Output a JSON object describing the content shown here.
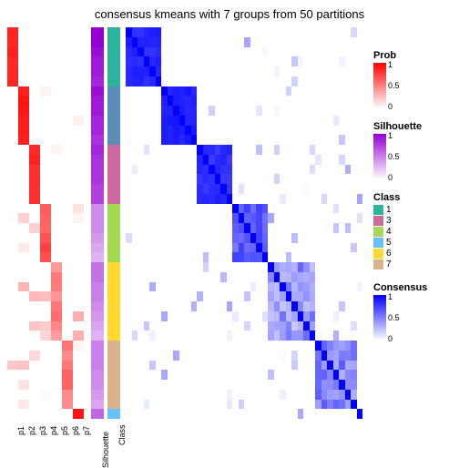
{
  "title": "consensus kmeans with 7 groups from 50 partitions",
  "n_samples": 40,
  "prob_columns": [
    "p1",
    "p2",
    "p3",
    "p4",
    "p5",
    "p6",
    "p7"
  ],
  "annotation_labels": [
    "Silhouette",
    "Class"
  ],
  "class_colors": {
    "1": "#2bb39b",
    "2": "#5a8eb8",
    "3": "#cc6aa0",
    "4": "#a6d854",
    "5": "#66c2ff",
    "6": "#ffd92f",
    "7": "#d9b38c"
  },
  "prob_gradient": {
    "low": "#ffffff",
    "high": "#ff0000"
  },
  "sil_gradient": {
    "low": "#ffffff",
    "high": "#9400d3"
  },
  "cons_gradient": {
    "low": "#ffffff",
    "high": "#0000ff"
  },
  "legends": {
    "prob": {
      "title": "Prob",
      "stops": [
        "1",
        "0.5",
        "0"
      ],
      "low": "#ffffff",
      "high": "#ff0000"
    },
    "sil": {
      "title": "Silhouette",
      "stops": [
        "1",
        "0.5",
        "0"
      ],
      "low": "#ffffff",
      "high": "#9400d3"
    },
    "class": {
      "title": "Class",
      "items": [
        {
          "label": "1",
          "color": "#2bb39b"
        },
        {
          "label": "3",
          "color": "#cc6aa0"
        },
        {
          "label": "4",
          "color": "#a6d854"
        },
        {
          "label": "5",
          "color": "#66c2ff"
        },
        {
          "label": "6",
          "color": "#ffd92f"
        },
        {
          "label": "7",
          "color": "#d9b38c"
        }
      ]
    },
    "cons": {
      "title": "Consensus",
      "stops": [
        "1",
        "0.5",
        "0"
      ],
      "low": "#ffffff",
      "high": "#0000ff"
    }
  },
  "groups": [
    {
      "class": 1,
      "size": 6,
      "scatter": 0.1
    },
    {
      "class": 2,
      "size": 6,
      "scatter": 0.08
    },
    {
      "class": 3,
      "size": 6,
      "scatter": 0.12
    },
    {
      "class": 4,
      "size": 6,
      "scatter": 0.25
    },
    {
      "class": 6,
      "size": 8,
      "scatter": 0.4
    },
    {
      "class": 7,
      "size": 7,
      "scatter": 0.35
    },
    {
      "class": 5,
      "size": 1,
      "scatter": 0.05
    }
  ],
  "sil_values": [
    1,
    1,
    0.95,
    0.9,
    0.9,
    0.85,
    0.95,
    0.9,
    0.9,
    0.85,
    0.85,
    0.8,
    0.85,
    0.8,
    0.8,
    0.8,
    0.75,
    0.75,
    0.45,
    0.45,
    0.45,
    0.4,
    0.35,
    0.3,
    0.55,
    0.55,
    0.5,
    0.5,
    0.45,
    0.4,
    0.35,
    0.3,
    0.5,
    0.5,
    0.5,
    0.45,
    0.45,
    0.4,
    0.35,
    0.6
  ],
  "background_color": "#ffffff",
  "title_fontsize": 13,
  "label_fontsize": 9
}
